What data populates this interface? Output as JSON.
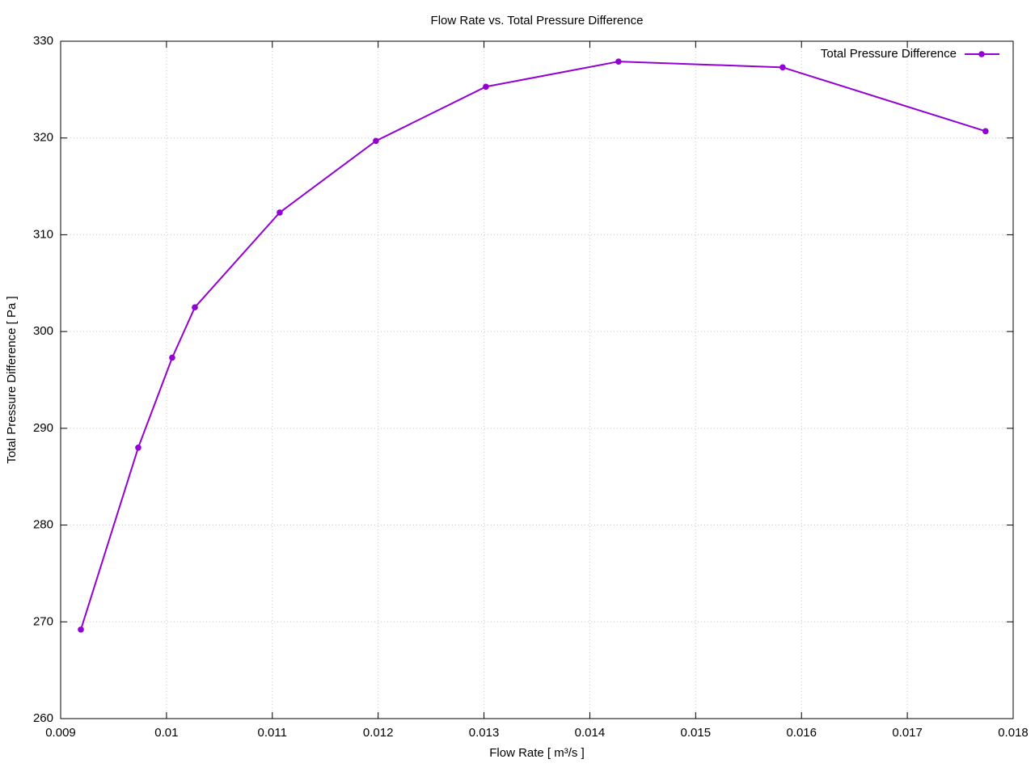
{
  "chart_data": {
    "type": "line",
    "title": "Flow Rate vs. Total Pressure Difference",
    "x_label": "Flow Rate [ m³/s ]",
    "y_label": "Total Pressure Difference [ Pa ]",
    "x": [
      0.009191,
      0.009733,
      0.010054,
      0.010268,
      0.01107,
      0.011979,
      0.013018,
      0.014271,
      0.015822,
      0.017739
    ],
    "series": [
      {
        "name": "Total Pressure Difference",
        "color": "#9400d3",
        "values": [
          269.2,
          288.0,
          297.3,
          302.5,
          312.3,
          319.7,
          325.3,
          327.9,
          327.3,
          320.7
        ]
      }
    ],
    "xlim": [
      0.009,
      0.018
    ],
    "xticks": [
      0.009,
      0.01,
      0.011,
      0.012,
      0.013,
      0.014,
      0.015,
      0.016,
      0.017,
      0.018
    ],
    "ylim": [
      260,
      330
    ],
    "yticks": [
      260,
      270,
      280,
      290,
      300,
      310,
      320,
      330
    ],
    "grid": true,
    "legend": "top-right"
  }
}
